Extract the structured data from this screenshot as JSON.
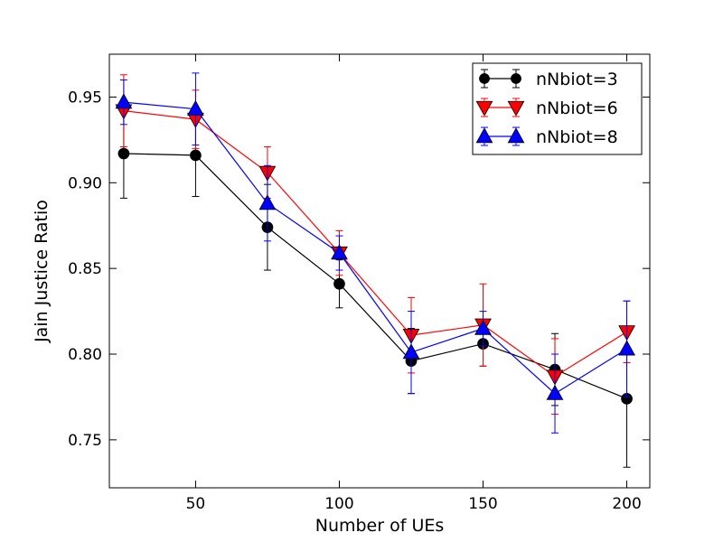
{
  "chart_data": {
    "type": "line",
    "title": "",
    "xlabel": "Number of UEs",
    "ylabel": "Jain Justice Ratio",
    "xlim": [
      20,
      208
    ],
    "ylim": [
      0.722,
      0.975
    ],
    "x": [
      25,
      50,
      75,
      100,
      125,
      150,
      175,
      200
    ],
    "x_ticks": [
      "50",
      "100",
      "150",
      "200"
    ],
    "x_tick_values": [
      50,
      100,
      150,
      200
    ],
    "y_ticks": [
      "0.75",
      "0.80",
      "0.85",
      "0.90",
      "0.95"
    ],
    "y_tick_values": [
      0.75,
      0.8,
      0.85,
      0.9,
      0.95
    ],
    "grid": false,
    "legend_position": "top-right",
    "series": [
      {
        "name": "nNbiot=3",
        "color": "#000000",
        "marker": "circle",
        "values": [
          0.917,
          0.916,
          0.874,
          0.841,
          0.796,
          0.806,
          0.791,
          0.774
        ],
        "errors": [
          0.026,
          0.024,
          0.025,
          0.014,
          0.019,
          0.013,
          0.021,
          0.04
        ]
      },
      {
        "name": "nNbiot=6",
        "color": "#ff0000",
        "marker": "triangle-down",
        "values": [
          0.942,
          0.937,
          0.906,
          0.859,
          0.811,
          0.817,
          0.787,
          0.813
        ],
        "errors": [
          0.021,
          0.017,
          0.015,
          0.013,
          0.022,
          0.024,
          0.022,
          0.018
        ]
      },
      {
        "name": "nNbiot=8",
        "color": "#0000ff",
        "marker": "triangle-up",
        "values": [
          0.947,
          0.943,
          0.888,
          0.859,
          0.801,
          0.815,
          0.777,
          0.803
        ],
        "errors": [
          0.013,
          0.021,
          0.022,
          0.01,
          0.024,
          0.01,
          0.023,
          0.028
        ]
      }
    ]
  }
}
